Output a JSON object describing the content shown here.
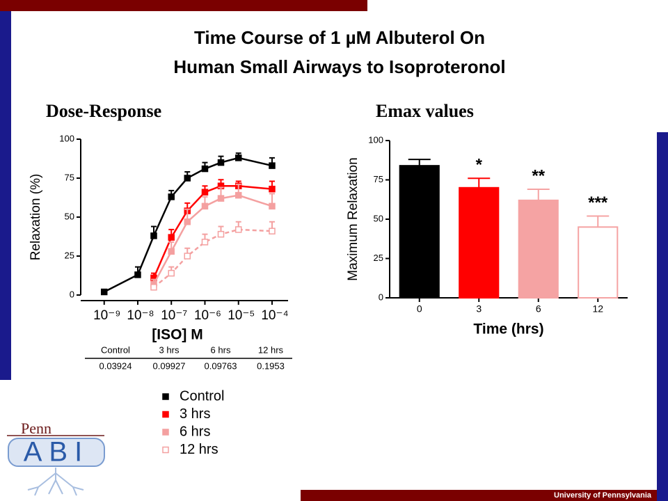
{
  "title_lines": [
    "Time Course of 1 µM Albuterol On",
    "Human Small Airways to Isoproteronol"
  ],
  "chart_data": [
    {
      "type": "line",
      "title": "Dose-Response",
      "xlabel": "[ISO] M",
      "ylabel": "Relaxation (%)",
      "xscale": "log",
      "xlim": [
        2e-10,
        0.0003
      ],
      "ylim": [
        0,
        100
      ],
      "xticks": [
        {
          "value": 1e-09,
          "label": "10⁻⁹"
        },
        {
          "value": 1e-08,
          "label": "10⁻⁸"
        },
        {
          "value": 1e-07,
          "label": "10⁻⁷"
        },
        {
          "value": 1e-06,
          "label": "10⁻⁶"
        },
        {
          "value": 1e-05,
          "label": "10⁻⁵"
        },
        {
          "value": 0.0001,
          "label": "10⁻⁴"
        }
      ],
      "yticks": [
        0,
        25,
        50,
        75,
        100
      ],
      "x": [
        1e-09,
        1e-08,
        3e-08,
        1e-07,
        3e-07,
        1e-06,
        3e-06,
        1e-05,
        0.0001
      ],
      "series": [
        {
          "name": "Control",
          "color": "#000000",
          "open_marker": false,
          "dashed": false,
          "values": [
            2,
            13,
            38,
            63,
            75,
            81,
            85,
            88,
            83
          ],
          "errors": [
            1,
            5,
            6,
            4,
            4,
            4,
            4,
            3,
            5
          ]
        },
        {
          "name": "3 hrs",
          "color": "#ff0000",
          "open_marker": false,
          "dashed": false,
          "values": [
            null,
            null,
            11,
            37,
            54,
            66,
            70,
            70,
            68
          ],
          "errors": [
            null,
            null,
            3,
            5,
            5,
            4,
            4,
            3,
            5
          ]
        },
        {
          "name": "6 hrs",
          "color": "#f4a0a0",
          "open_marker": false,
          "dashed": false,
          "values": [
            null,
            null,
            7,
            28,
            47,
            57,
            62,
            64,
            57
          ],
          "errors": [
            null,
            null,
            3,
            6,
            8,
            6,
            7,
            7,
            8
          ]
        },
        {
          "name": "12 hrs",
          "color": "#f4a0a0",
          "open_marker": true,
          "dashed": true,
          "values": [
            null,
            null,
            5,
            14,
            25,
            34,
            39,
            42,
            41
          ],
          "errors": [
            null,
            null,
            2,
            4,
            5,
            5,
            5,
            5,
            6
          ]
        }
      ]
    },
    {
      "type": "bar",
      "title": "Emax values",
      "xlabel": "Time (hrs)",
      "ylabel": "Maximum Relaxation",
      "ylim": [
        0,
        100
      ],
      "yticks": [
        0,
        25,
        50,
        75,
        100
      ],
      "categories": [
        "0",
        "3",
        "6",
        "12"
      ],
      "values": [
        84,
        70,
        62,
        45
      ],
      "errors": [
        4,
        6,
        7,
        7
      ],
      "colors": [
        "#000000",
        "#ff0000",
        "#f5a3a3",
        "#ffffff"
      ],
      "edgecolors": [
        "#000000",
        "#ff0000",
        "#f5a3a3",
        "#f5a3a3"
      ],
      "annotations": [
        null,
        "*",
        "**",
        "***"
      ]
    }
  ],
  "ec50_table": {
    "headers": [
      "Control",
      "3 hrs",
      "6 hrs",
      "12 hrs"
    ],
    "values": [
      0.03924,
      0.09927,
      0.09763,
      0.1953
    ]
  },
  "logo": {
    "top": "Penn",
    "main": "ABI"
  },
  "footer": "University of Pennsylvania"
}
